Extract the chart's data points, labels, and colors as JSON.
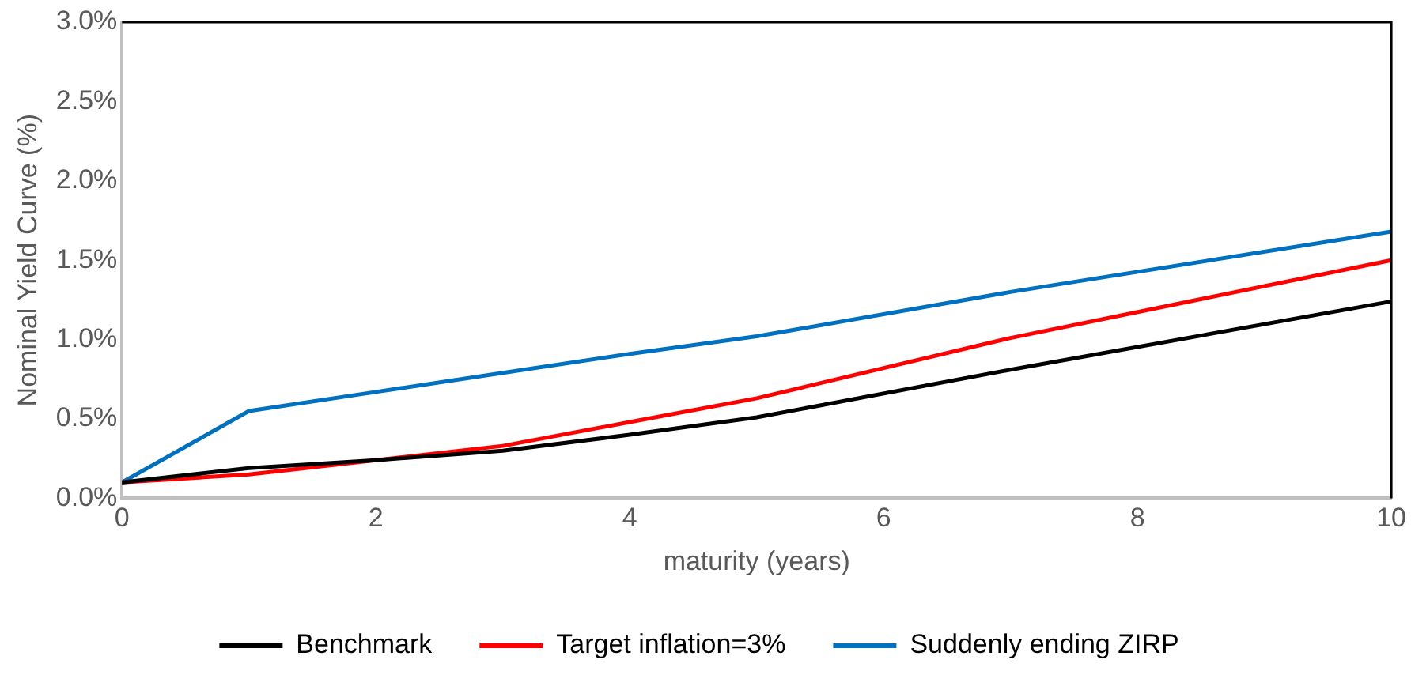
{
  "chart_data": {
    "type": "line",
    "xlabel": "maturity (years)",
    "ylabel": "Nominal Yield Curve (%)",
    "x": [
      0,
      1,
      2,
      3,
      4,
      5,
      7,
      10
    ],
    "series": [
      {
        "name": "Benchmark",
        "color": "#000000",
        "values": [
          0.1,
          0.19,
          0.24,
          0.3,
          0.4,
          0.51,
          0.81,
          1.24
        ]
      },
      {
        "name": "Target inflation=3%",
        "color": "#ff0000",
        "values": [
          0.1,
          0.15,
          0.24,
          0.33,
          0.48,
          0.63,
          1.01,
          1.5
        ]
      },
      {
        "name": "Suddenly ending ZIRP",
        "color": "#0070c0",
        "values": [
          0.1,
          0.55,
          0.67,
          0.79,
          0.91,
          1.02,
          1.3,
          1.68
        ]
      }
    ],
    "xlim": [
      0,
      10
    ],
    "xticks": [
      0,
      2,
      4,
      6,
      8,
      10
    ],
    "ylim": [
      0,
      3
    ],
    "yticks": [
      {
        "value": 0,
        "label": "0.0%"
      },
      {
        "value": 0.5,
        "label": "0.5%"
      },
      {
        "value": 1,
        "label": "1.0%"
      },
      {
        "value": 1.5,
        "label": "1.5%"
      },
      {
        "value": 2,
        "label": "2.0%"
      },
      {
        "value": 2.5,
        "label": "2.5%"
      },
      {
        "value": 3,
        "label": "3.0%"
      }
    ],
    "grid": false,
    "legend": "bottom",
    "marker": "none",
    "line_style": "solid"
  }
}
